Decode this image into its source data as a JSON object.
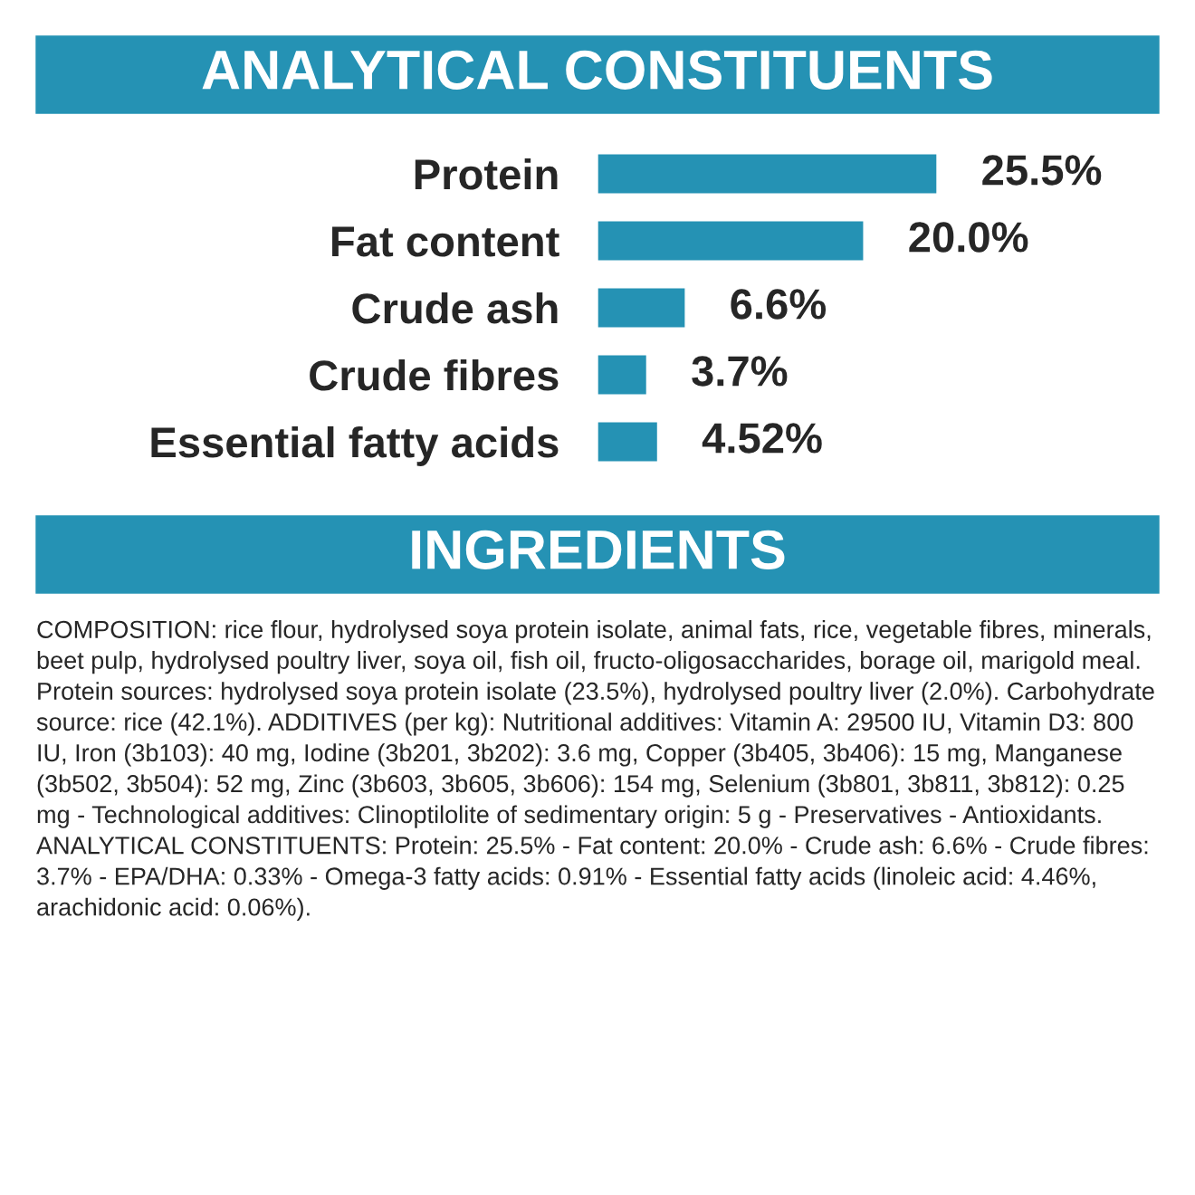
{
  "chart_data": {
    "type": "bar",
    "orientation": "horizontal",
    "title": "ANALYTICAL CONSTITUENTS",
    "categories": [
      "Protein",
      "Fat content",
      "Crude ash",
      "Crude fibres",
      "Essential fatty acids"
    ],
    "values": [
      25.5,
      20.0,
      6.6,
      3.7,
      4.52
    ],
    "value_labels": [
      "25.5%",
      "20.0%",
      "6.6%",
      "3.7%",
      "4.52%"
    ],
    "color": "#2592b4",
    "annotations": [
      "INGREDIENTS",
      "COMPOSITION: rice flour, hydrolysed soya protein isolate, animal fats, rice, vegetable fibres, minerals, beet pulp, hydrolysed poultry liver, soya oil, fish oil, fructo-oligosaccharides, borage oil, marigold meal. Protein sources: hydrolysed soya protein isolate (23.5%), hydrolysed poultry liver (2.0%). Carbohydrate source: rice (42.1%). ADDITIVES (per kg): Nutritional additives: Vitamin A: 29500 IU, Vitamin D3: 800 IU, Iron (3b103): 40 mg, Iodine (3b201, 3b202): 3.6 mg, Copper (3b405, 3b406): 15 mg, Manganese (3b502, 3b504): 52 mg, Zinc (3b603, 3b605, 3b606): 154 mg, Selenium (3b801, 3b811, 3b812): 0.25 mg - Technological additives: Clinoptilolite of sedimentary origin: 5 g - Preservatives - Antioxidants. ANALYTICAL CONSTITUENTS: Protein: 25.5% - Fat content: 20.0% - Crude ash: 6.6% - Crude fibres: 3.7% - EPA/DHA: 0.33% - Omega-3 fatty acids: 0.91% - Essential fatty acids (linoleic acid: 4.46%, arachidonic acid: 0.06%)."
    ]
  }
}
